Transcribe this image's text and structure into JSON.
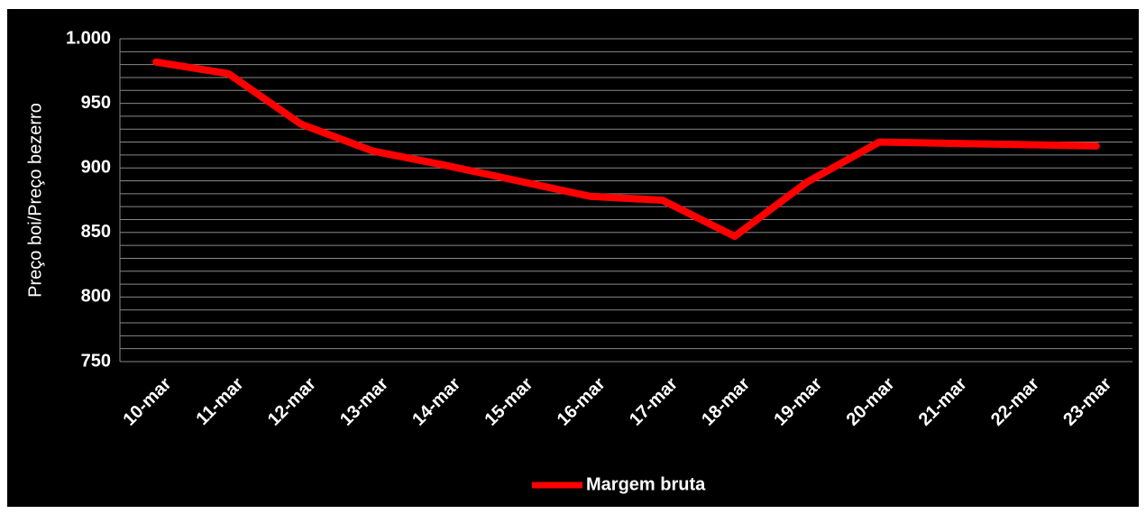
{
  "chart_data": {
    "type": "line",
    "y_label": "Preço boi/Preço bezerro",
    "categories": [
      "10-mar",
      "11-mar",
      "12-mar",
      "13-mar",
      "14-mar",
      "15-mar",
      "16-mar",
      "17-mar",
      "18-mar",
      "19-mar",
      "20-mar",
      "21-mar",
      "22-mar",
      "23-mar"
    ],
    "series": [
      {
        "name": "Margem bruta",
        "color": "#ff0000",
        "values": [
          982,
          973,
          934,
          913,
          902,
          890,
          878,
          875,
          847,
          889,
          920,
          919,
          918,
          917
        ]
      }
    ],
    "ylim": [
      750,
      1000
    ],
    "yticks": [
      750,
      800,
      850,
      900,
      950,
      {
        "value": 1000,
        "label": "1.000"
      }
    ],
    "minor_yticks": [
      760,
      770,
      780,
      790,
      810,
      820,
      830,
      840,
      860,
      870,
      880,
      890,
      910,
      920,
      930,
      940,
      960,
      970,
      980,
      990
    ],
    "grid": true,
    "legend": "bottom"
  }
}
